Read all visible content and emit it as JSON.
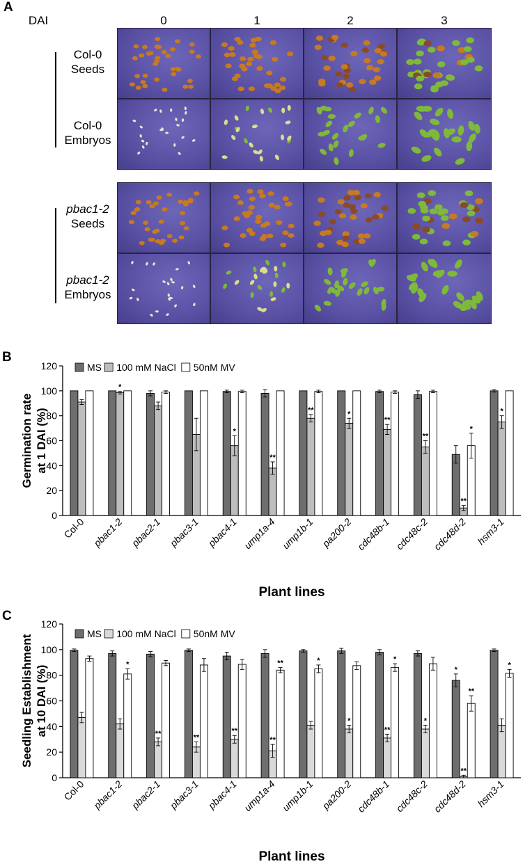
{
  "panel_a": {
    "letter": "A",
    "dai_label": "DAI",
    "days": [
      "0",
      "1",
      "2",
      "3"
    ],
    "groups": [
      {
        "rows": [
          {
            "line1": "Col-0",
            "line2": "Seeds",
            "italic": false,
            "kind": "seeds"
          },
          {
            "line1": "Col-0",
            "line2": "Embryos",
            "italic": false,
            "kind": "embryos"
          }
        ]
      },
      {
        "rows": [
          {
            "line1": "pbac1-2",
            "line2": "Seeds",
            "italic": true,
            "kind": "seeds"
          },
          {
            "line1": "pbac1-2",
            "line2": "Embryos",
            "italic": true,
            "kind": "embryos"
          }
        ]
      }
    ],
    "colors": {
      "background": "#5b52a6",
      "seed": "#c77a22",
      "embryo": "#e8e4d4",
      "seedling": "#7fb93a"
    }
  },
  "chart_data": [
    {
      "panel": "B",
      "type": "bar",
      "ylabel": [
        "Germination rate",
        "at 1 DAI (%)"
      ],
      "xlabel": "Plant lines",
      "ylim": [
        0,
        120
      ],
      "yticks": [
        0,
        20,
        40,
        60,
        80,
        100,
        120
      ],
      "categories": [
        "Col-0",
        "pbac1-2",
        "pbac2-1",
        "pbac3-1",
        "pbac4-1",
        "ump1a-4",
        "ump1b-1",
        "pa200-2",
        "cdc48b-1",
        "cdc48c-2",
        "cdc48d-2",
        "hsm3-1"
      ],
      "legend_position": "top-left",
      "series": [
        {
          "name": "MS",
          "color": "#6e6e6e",
          "values": [
            100,
            100,
            98,
            100,
            99.5,
            98,
            100,
            100,
            99.5,
            97,
            49,
            100
          ],
          "errors": [
            0,
            0,
            2,
            0,
            1,
            3,
            0,
            0,
            1,
            3,
            7,
            1
          ],
          "sig": [
            "",
            "",
            "",
            "",
            "",
            "",
            "",
            "",
            "",
            "",
            "",
            ""
          ]
        },
        {
          "name": "100 mM NaCl",
          "color": "#bdbdbd",
          "values": [
            91,
            98.5,
            88,
            65,
            56,
            38,
            78,
            74,
            69,
            55,
            6,
            75
          ],
          "errors": [
            2,
            1,
            3,
            13,
            8,
            5,
            3,
            4,
            4,
            5,
            2,
            5
          ],
          "sig": [
            "",
            "*",
            "",
            "",
            "*",
            "**",
            "**",
            "*",
            "**",
            "**",
            "**",
            "*"
          ]
        },
        {
          "name": "50nM MV",
          "color": "#ffffff",
          "values": [
            100,
            100,
            99,
            100,
            99.5,
            100,
            99.5,
            100,
            99,
            99.5,
            56,
            100
          ],
          "errors": [
            0,
            0,
            1,
            0,
            1,
            0,
            1,
            0,
            1,
            1,
            10,
            0
          ],
          "sig": [
            "",
            "",
            "",
            "",
            "",
            "",
            "",
            "",
            "",
            "",
            "*",
            ""
          ]
        }
      ]
    },
    {
      "panel": "C",
      "type": "bar",
      "ylabel": [
        "Seedling Establishment",
        "at 10 DAI (%)"
      ],
      "xlabel": "Plant lines",
      "ylim": [
        0,
        120
      ],
      "yticks": [
        0,
        20,
        40,
        60,
        80,
        100,
        120
      ],
      "categories": [
        "Col-0",
        "pbac1-2",
        "pbac2-1",
        "pbac3-1",
        "pbac4-1",
        "ump1a-4",
        "ump1b-1",
        "pa200-2",
        "cdc48b-1",
        "cdc48c-2",
        "cdc48d-2",
        "hsm3-1"
      ],
      "legend_position": "top-left",
      "series": [
        {
          "name": "MS",
          "color": "#6e6e6e",
          "values": [
            99.5,
            97,
            96.5,
            99.5,
            95,
            97,
            99,
            99,
            98,
            97,
            76,
            99.5
          ],
          "errors": [
            1,
            2,
            2,
            1,
            3,
            3,
            1,
            2,
            2,
            2,
            5,
            1
          ],
          "sig": [
            "",
            "",
            "",
            "",
            "",
            "",
            "",
            "",
            "",
            "",
            "*",
            ""
          ]
        },
        {
          "name": "100 mM NaCl",
          "color": "#d9d9d9",
          "values": [
            47,
            42,
            28,
            24,
            30,
            21,
            41,
            38,
            31,
            38,
            1,
            41
          ],
          "errors": [
            4,
            4,
            3,
            4,
            3,
            5,
            3,
            3,
            3,
            3,
            1,
            5
          ],
          "sig": [
            "",
            "",
            "**",
            "**",
            "**",
            "**",
            "",
            "*",
            "**",
            "*",
            "**",
            ""
          ]
        },
        {
          "name": "50nM MV",
          "color": "#ffffff",
          "values": [
            93,
            81,
            89.5,
            88,
            88.5,
            84,
            85,
            87.5,
            86,
            89,
            58,
            81.5
          ],
          "errors": [
            2,
            4,
            2,
            5,
            4,
            2,
            3,
            3,
            3,
            5,
            6,
            3
          ],
          "sig": [
            "",
            "*",
            "",
            "",
            "",
            "**",
            "*",
            "",
            "*",
            "",
            "**",
            "*"
          ]
        }
      ]
    }
  ]
}
